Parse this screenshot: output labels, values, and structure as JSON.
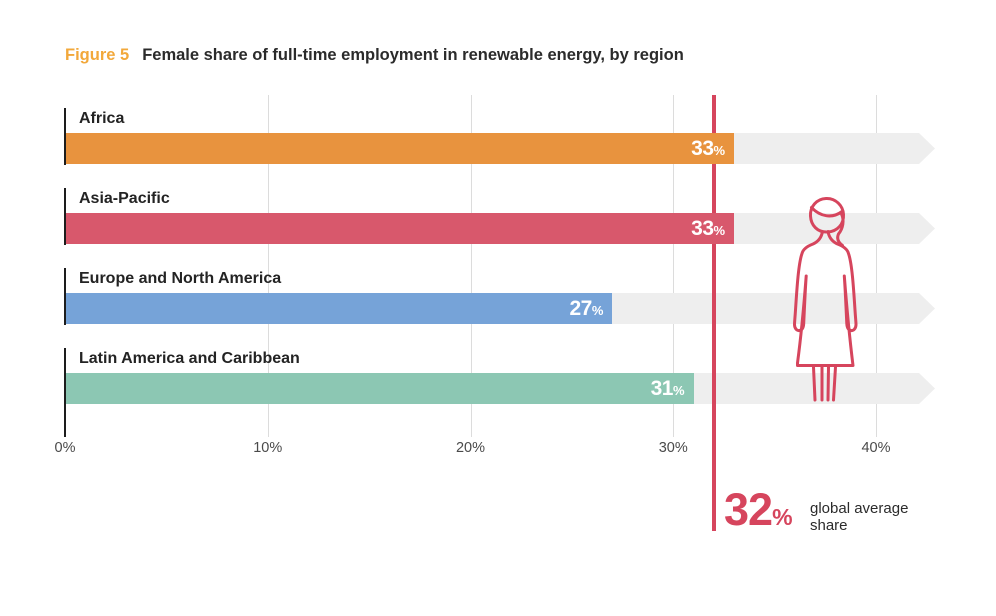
{
  "figure": {
    "label": "Figure 5",
    "title": "Female share of full-time employment in renewable energy, by region"
  },
  "chart_data": {
    "type": "bar",
    "orientation": "horizontal",
    "categories": [
      "Africa",
      "Asia-Pacific",
      "Europe and North America",
      "Latin America and Caribbean"
    ],
    "values": [
      33,
      33,
      27,
      31
    ],
    "unit": "%",
    "series_colors": [
      "#E8933E",
      "#D8586C",
      "#76A3D8",
      "#8CC7B3"
    ],
    "track_color": "#EEEEEE",
    "xlim": [
      0,
      43
    ],
    "ticks": [
      {
        "value": 0,
        "label": "0%"
      },
      {
        "value": 10,
        "label": "10%"
      },
      {
        "value": 20,
        "label": "20%"
      },
      {
        "value": 30,
        "label": "30%"
      },
      {
        "value": 40,
        "label": "40%"
      }
    ],
    "grid": true,
    "legend": false,
    "reference_line": {
      "value": 32,
      "color": "#D6455D",
      "label_number": "32",
      "label_unit": "%",
      "caption_line1": "global average",
      "caption_line2": "share"
    }
  },
  "icons": {
    "woman_figure": "woman-outline-icon",
    "woman_color": "#D6455D"
  },
  "colors": {
    "figure_label": "#F2A83B",
    "title_text": "#2b2b2b",
    "axis_text": "#4A4A4A",
    "bar_value_text": "#FFFFFF",
    "gridline": "#DCDCDC",
    "axis_line": "#1d1d1d"
  }
}
